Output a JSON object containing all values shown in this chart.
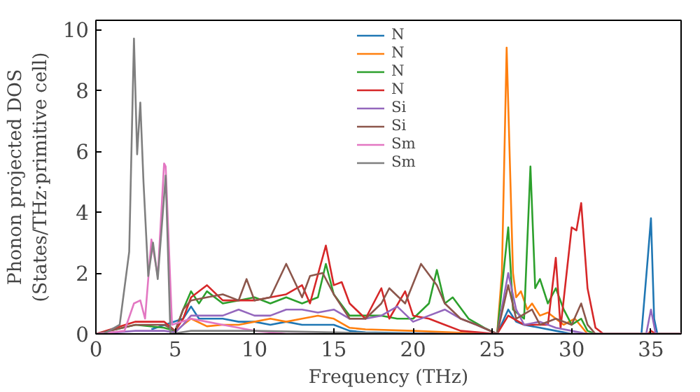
{
  "chart_data": {
    "type": "line",
    "xlabel": "Frequency (THz)",
    "ylabel": "Phonon projected DOS\n(States/THz·primitive cell)",
    "xlim": [
      0,
      36.9
    ],
    "ylim": [
      0,
      10.3
    ],
    "xticks": [
      0,
      5,
      10,
      15,
      20,
      25,
      30,
      35
    ],
    "yticks": [
      0,
      2,
      4,
      6,
      8,
      10
    ],
    "grid": false,
    "legend": "top",
    "line_style": "solid",
    "marker": "none",
    "series": [
      {
        "name": "N",
        "color": "#1f77b4",
        "x": [
          3.5,
          5.5,
          6,
          6.5,
          7,
          8,
          9,
          10,
          11,
          12,
          13,
          14,
          15,
          16,
          17,
          20,
          24.8,
          25.3,
          26,
          26.5,
          27,
          28,
          29,
          30,
          34.4,
          34.8,
          35,
          35.2,
          35.4,
          36.9
        ],
        "values": [
          0.15,
          0.5,
          0.9,
          0.5,
          0.5,
          0.5,
          0.4,
          0.4,
          0.3,
          0.4,
          0.3,
          0.3,
          0.3,
          0.1,
          0.05,
          0.02,
          0,
          0,
          0.8,
          0.4,
          0.3,
          0.2,
          0.1,
          0,
          0,
          2.5,
          3.8,
          0.5,
          0,
          0
        ]
      },
      {
        "name": "N",
        "color": "#ff7f0e",
        "x": [
          5.5,
          6,
          7,
          8,
          9,
          10,
          11,
          12,
          13,
          14,
          15,
          16,
          17,
          20,
          24.8,
          25.3,
          25.6,
          25.9,
          26.3,
          26.5,
          26.8,
          27.2,
          27.5,
          28,
          28.5,
          29.5,
          30.2,
          31,
          36.9
        ],
        "values": [
          0.3,
          0.5,
          0.25,
          0.3,
          0.3,
          0.4,
          0.5,
          0.4,
          0.5,
          0.6,
          0.5,
          0.2,
          0.15,
          0.1,
          0,
          0,
          2,
          9.4,
          2,
          1.2,
          1.4,
          0.8,
          1.0,
          0.6,
          0.7,
          0.3,
          0.5,
          0,
          0
        ]
      },
      {
        "name": "N",
        "color": "#2ca02c",
        "x": [
          0,
          2.5,
          4.3,
          5.0,
          5.5,
          6,
          6.5,
          7,
          8,
          9,
          10,
          11,
          12,
          13,
          14,
          14.5,
          15,
          16,
          17,
          18,
          19,
          20,
          21,
          21.5,
          22,
          22.5,
          23.5,
          24.5,
          25.3,
          26,
          26.3,
          27,
          27.4,
          27.7,
          28,
          28.5,
          29,
          29.5,
          30,
          30.6,
          31,
          31.5,
          36.9
        ],
        "values": [
          0,
          0.3,
          0.2,
          0.1,
          0.8,
          1.4,
          1.0,
          1.4,
          1.0,
          1.1,
          1.2,
          1.0,
          1.2,
          1.0,
          1.2,
          2.3,
          1.3,
          0.6,
          0.6,
          0.6,
          0.5,
          0.5,
          1.0,
          2.1,
          1.0,
          1.2,
          0.5,
          0.2,
          0,
          3.5,
          0.8,
          0.5,
          5.5,
          1.5,
          1.8,
          1.0,
          1.5,
          0.8,
          0.3,
          0.5,
          0.1,
          0,
          0
        ]
      },
      {
        "name": "N",
        "color": "#d62728",
        "x": [
          0,
          2.5,
          4.3,
          5.0,
          5.5,
          6,
          7,
          8,
          9,
          10,
          11,
          12,
          13,
          13.5,
          14.5,
          15,
          15.5,
          16,
          17,
          18,
          18.5,
          19.5,
          20,
          21,
          22,
          23,
          25.3,
          26,
          27,
          28.5,
          29,
          29.3,
          30,
          30.3,
          30.6,
          31,
          31.5,
          32,
          34.8,
          35,
          35.3,
          36.9
        ],
        "values": [
          0,
          0.4,
          0.4,
          0.1,
          0.5,
          1.2,
          1.6,
          1.1,
          1.1,
          1.1,
          1.2,
          1.3,
          1.6,
          1.0,
          2.9,
          1.6,
          1.7,
          1.0,
          0.5,
          1.5,
          0.5,
          1.4,
          0.6,
          0.5,
          0.3,
          0.1,
          0,
          0.6,
          0.3,
          0.3,
          2.5,
          0.2,
          3.5,
          3.4,
          4.3,
          1.5,
          0.2,
          0,
          0,
          0.1,
          0,
          0
        ]
      },
      {
        "name": "Si",
        "color": "#9467bd",
        "x": [
          0,
          2.5,
          4.3,
          5.0,
          5.5,
          6,
          7,
          8,
          9,
          10,
          11,
          12,
          13,
          14,
          15,
          16,
          17,
          18,
          19,
          20,
          21,
          22,
          23,
          24,
          25.3,
          26,
          26.5,
          27,
          28,
          29,
          30,
          31,
          34.7,
          35,
          35.3,
          36.9
        ],
        "values": [
          0,
          0.1,
          0.1,
          0.05,
          0.3,
          0.6,
          0.6,
          0.6,
          0.8,
          0.6,
          0.6,
          0.8,
          0.8,
          0.7,
          0.8,
          0.5,
          0.5,
          0.6,
          0.9,
          0.4,
          0.6,
          0.8,
          0.5,
          0.3,
          0,
          2.0,
          0.8,
          0.3,
          0.4,
          0.2,
          0.1,
          0,
          0,
          0.8,
          0,
          0
        ]
      },
      {
        "name": "Si",
        "color": "#8c564b",
        "x": [
          0,
          2.5,
          4.3,
          5.0,
          5.5,
          6,
          7,
          8,
          9,
          9.5,
          10,
          11,
          12,
          13,
          13.5,
          14.3,
          15,
          16,
          17,
          18,
          18.5,
          19.5,
          20.5,
          21.5,
          22,
          23,
          24,
          25.3,
          26,
          26.5,
          27.5,
          28,
          29,
          30,
          30.6,
          31,
          31.5,
          36.9
        ],
        "values": [
          0,
          0.3,
          0.3,
          0.1,
          0.8,
          1.1,
          1.2,
          1.3,
          1.1,
          1.8,
          1.1,
          1.2,
          2.3,
          1.2,
          1.9,
          2.0,
          1.3,
          0.5,
          0.5,
          1.0,
          1.5,
          1.0,
          2.3,
          1.6,
          1.0,
          0.5,
          0.3,
          0,
          1.6,
          0.5,
          0.8,
          0.3,
          0.5,
          0.3,
          1.0,
          0.3,
          0,
          0
        ]
      },
      {
        "name": "Sm",
        "color": "#e377c2",
        "x": [
          0,
          1.8,
          2.4,
          2.8,
          3.1,
          3.5,
          3.9,
          4.3,
          4.4,
          4.8,
          6,
          7,
          8,
          9,
          10,
          12,
          36.9
        ],
        "values": [
          0,
          0.1,
          1.0,
          1.1,
          0.5,
          3.1,
          1.9,
          5.6,
          5.5,
          0.3,
          0.5,
          0.4,
          0.3,
          0.2,
          0.1,
          0,
          0
        ]
      },
      {
        "name": "Sm",
        "color": "#7f7f7f",
        "x": [
          0,
          0.5,
          1.5,
          2.1,
          2.4,
          2.6,
          2.8,
          3.0,
          3.3,
          3.6,
          3.9,
          4.4,
          4.7,
          6,
          10,
          15,
          20,
          36.9
        ],
        "values": [
          0,
          0,
          0.3,
          2.7,
          9.7,
          5.9,
          7.6,
          5.0,
          1.9,
          3.0,
          1.8,
          5.2,
          0,
          0.1,
          0.1,
          0.05,
          0,
          0
        ]
      }
    ]
  }
}
